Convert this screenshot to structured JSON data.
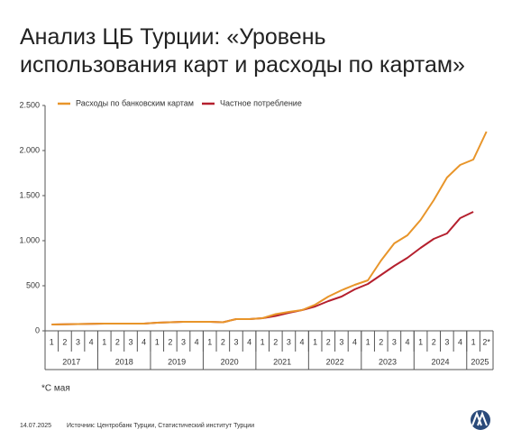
{
  "chart_data": {
    "type": "line",
    "title": "Анализ ЦБ Турции: «Уровень использования карт и расходы по картам»",
    "categories": [
      "1",
      "2",
      "3",
      "4",
      "1",
      "2",
      "3",
      "4",
      "1",
      "2",
      "3",
      "4",
      "1",
      "2",
      "3",
      "4",
      "1",
      "2",
      "3",
      "4",
      "1",
      "2",
      "3",
      "4",
      "1",
      "2",
      "3",
      "4",
      "1",
      "2",
      "3",
      "4",
      "1",
      "2*"
    ],
    "years": [
      "2017",
      "2018",
      "2019",
      "2020",
      "2021",
      "2022",
      "2023",
      "2024",
      "2025"
    ],
    "series": [
      {
        "name": "Расходы по банковским картам",
        "color": "#e8952a",
        "values": [
          70,
          72,
          75,
          78,
          80,
          80,
          80,
          80,
          90,
          95,
          100,
          100,
          100,
          95,
          130,
          130,
          140,
          185,
          210,
          230,
          290,
          380,
          450,
          510,
          560,
          780,
          970,
          1060,
          1230,
          1450,
          1700,
          1840,
          1900,
          2210
        ]
      },
      {
        "name": "Частное потребление",
        "color": "#b5202e",
        "values": [
          70,
          72,
          75,
          78,
          80,
          80,
          80,
          80,
          90,
          95,
          100,
          100,
          100,
          95,
          130,
          130,
          140,
          165,
          200,
          230,
          270,
          330,
          380,
          460,
          520,
          620,
          720,
          810,
          920,
          1020,
          1080,
          1250,
          1320,
          null
        ]
      }
    ],
    "ylim": [
      0,
      2500
    ],
    "yticks": [
      0,
      500,
      {
        "value": 1000,
        "label": "1.000"
      },
      {
        "value": 1500,
        "label": "1.500"
      },
      {
        "value": 2000,
        "label": "2.000"
      },
      {
        "value": 2500,
        "label": "2.500"
      }
    ],
    "footnote": "*С мая",
    "date": "14.07.2025",
    "source": "Источник: Центробанк Турции, Статистический институт Турции"
  }
}
